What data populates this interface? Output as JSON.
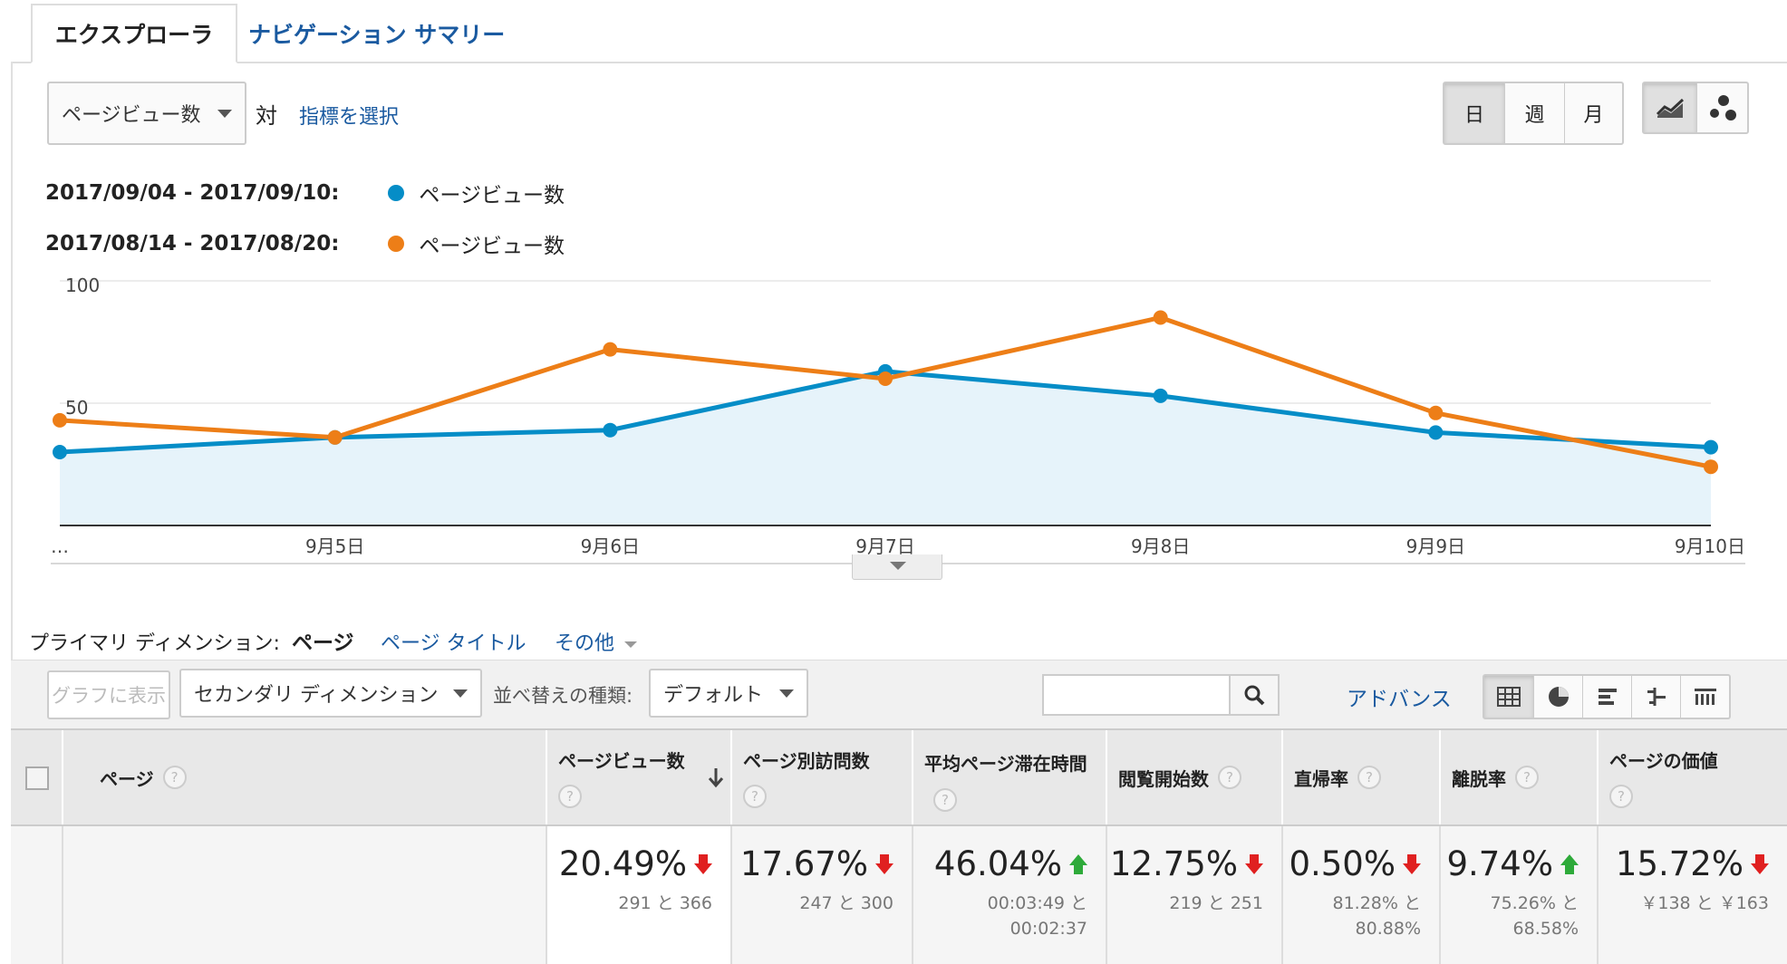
{
  "tabs": {
    "explorer": "エクスプローラ",
    "nav_summary": "ナビゲーション サマリー"
  },
  "metric_select": {
    "value": "ページビュー数",
    "vs": "対",
    "select_metric": "指標を選択"
  },
  "period_buttons": {
    "day": "日",
    "week": "週",
    "month": "月"
  },
  "legend": [
    {
      "range": "2017/09/04 - 2017/09/10:",
      "name": "ページビュー数",
      "color": "#058dc7"
    },
    {
      "range": "2017/08/14 - 2017/08/20:",
      "name": "ページビュー数",
      "color": "#ed7e17"
    }
  ],
  "chart_data": {
    "type": "line",
    "categories": [
      "…",
      "9月5日",
      "9月6日",
      "9月7日",
      "9月8日",
      "9月9日",
      "9月10日"
    ],
    "series": [
      {
        "name": "ページビュー数",
        "color": "#058dc7",
        "values": [
          30,
          36,
          39,
          63,
          53,
          38,
          32
        ],
        "area": true
      },
      {
        "name": "ページビュー数",
        "color": "#ed7e17",
        "values": [
          43,
          36,
          72,
          60,
          85,
          46,
          24
        ]
      }
    ],
    "yticks": [
      "100",
      "50"
    ],
    "ylim": [
      0,
      100
    ]
  },
  "dimension": {
    "label": "プライマリ ディメンション:",
    "page": "ページ",
    "page_title": "ページ タイトル",
    "other": "その他"
  },
  "toolbar": {
    "graph_btn": "グラフに表示",
    "secondary_dim": "セカンダリ ディメンション",
    "sort_label": "並べ替えの種類:",
    "sort_value": "デフォルト",
    "advanced": "アドバンス"
  },
  "table": {
    "columns": [
      "ページ",
      "ページビュー数",
      "ページ別訪問数",
      "平均ページ滞在時間",
      "閲覧開始数",
      "直帰率",
      "離脱率",
      "ページの価値"
    ],
    "help": "?",
    "summary": [
      {
        "pct": "20.49%",
        "dir": "down",
        "detail": "291 と 366"
      },
      {
        "pct": "17.67%",
        "dir": "down",
        "detail": "247 と 300"
      },
      {
        "pct": "46.04%",
        "dir": "up",
        "detail1": "00:03:49 と",
        "detail2": "00:02:37"
      },
      {
        "pct": "12.75%",
        "dir": "down",
        "detail": "219 と 251"
      },
      {
        "pct": "0.50%",
        "dir": "down",
        "detail1": "81.28% と",
        "detail2": "80.88%"
      },
      {
        "pct": "9.74%",
        "dir": "up",
        "detail1": "75.26% と",
        "detail2": "68.58%"
      },
      {
        "pct": "15.72%",
        "dir": "down",
        "detail": "￥138 と ￥163"
      }
    ]
  }
}
